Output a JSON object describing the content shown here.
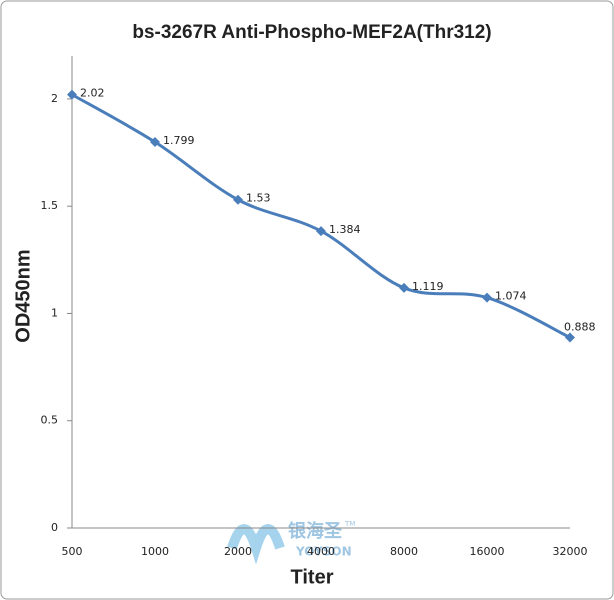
{
  "chart_data": {
    "type": "line",
    "title": "bs-3267R Anti-Phospho-MEF2A(Thr312)",
    "x_label": "Titer",
    "y_label": "OD450nm",
    "categories": [
      "500",
      "1000",
      "2000",
      "4000",
      "8000",
      "16000",
      "32000"
    ],
    "values": [
      2.02,
      1.799,
      1.53,
      1.384,
      1.119,
      1.074,
      0.888
    ],
    "color": "#4a7ebb",
    "ylim": [
      0,
      2.2
    ],
    "yticks": [
      0,
      0.5,
      1,
      1.5,
      2
    ],
    "grid": false,
    "watermark": {
      "brand": "银海圣",
      "tm": "TM",
      "latin": "YOYSON"
    }
  }
}
